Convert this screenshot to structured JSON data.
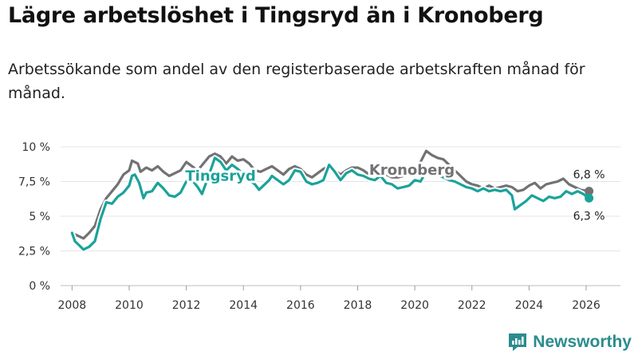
{
  "header": {
    "title": "Lägre arbetslöshet i Tingsryd än i Kronoberg",
    "subtitle": "Arbetssökande som andel av den registerbaserade arbetskraften månad för månad."
  },
  "brand": {
    "name": "Newsworthy",
    "icon": "newsworthy-logo-icon",
    "color": "#2b8c8e"
  },
  "chart_data": {
    "type": "line",
    "title": "Lägre arbetslöshet i Tingsryd än i Kronoberg",
    "subtitle": "Arbetssökande som andel av den registerbaserade arbetskraften månad för månad.",
    "xlabel": "",
    "ylabel": "",
    "xlim": [
      2007.6,
      2027.2
    ],
    "ylim": [
      0,
      10
    ],
    "x_ticks": [
      2008,
      2010,
      2012,
      2014,
      2016,
      2018,
      2020,
      2022,
      2024,
      2026
    ],
    "x_tick_labels": [
      "2008",
      "2010",
      "2012",
      "2014",
      "2016",
      "2018",
      "2020",
      "2022",
      "2024",
      "2026"
    ],
    "y_ticks": [
      0,
      2.5,
      5,
      7.5,
      10
    ],
    "y_tick_labels": [
      "0 %",
      "2,5 %",
      "5 %",
      "7,5 %",
      "10 %"
    ],
    "grid": true,
    "series": [
      {
        "name": "Kronoberg",
        "color": "#727275",
        "label": "Kronoberg",
        "end_label": "6,8 %",
        "points": [
          [
            2008.0,
            3.8
          ],
          [
            2008.2,
            3.6
          ],
          [
            2008.4,
            3.4
          ],
          [
            2008.6,
            3.8
          ],
          [
            2008.8,
            4.3
          ],
          [
            2009.0,
            5.5
          ],
          [
            2009.2,
            6.3
          ],
          [
            2009.4,
            6.8
          ],
          [
            2009.6,
            7.3
          ],
          [
            2009.8,
            8.0
          ],
          [
            2010.0,
            8.3
          ],
          [
            2010.1,
            9.0
          ],
          [
            2010.3,
            8.8
          ],
          [
            2010.4,
            8.2
          ],
          [
            2010.6,
            8.5
          ],
          [
            2010.8,
            8.3
          ],
          [
            2011.0,
            8.6
          ],
          [
            2011.2,
            8.2
          ],
          [
            2011.4,
            7.9
          ],
          [
            2011.6,
            8.1
          ],
          [
            2011.8,
            8.3
          ],
          [
            2012.0,
            8.9
          ],
          [
            2012.2,
            8.6
          ],
          [
            2012.4,
            8.3
          ],
          [
            2012.6,
            8.8
          ],
          [
            2012.8,
            9.3
          ],
          [
            2013.0,
            9.5
          ],
          [
            2013.2,
            9.3
          ],
          [
            2013.4,
            8.8
          ],
          [
            2013.6,
            9.3
          ],
          [
            2013.8,
            9.0
          ],
          [
            2014.0,
            9.1
          ],
          [
            2014.2,
            8.8
          ],
          [
            2014.4,
            8.3
          ],
          [
            2014.6,
            8.2
          ],
          [
            2014.8,
            8.4
          ],
          [
            2015.0,
            8.6
          ],
          [
            2015.2,
            8.3
          ],
          [
            2015.4,
            8.0
          ],
          [
            2015.6,
            8.4
          ],
          [
            2015.8,
            8.6
          ],
          [
            2016.0,
            8.4
          ],
          [
            2016.2,
            8.0
          ],
          [
            2016.4,
            7.8
          ],
          [
            2016.6,
            8.1
          ],
          [
            2016.8,
            8.4
          ],
          [
            2017.0,
            8.6
          ],
          [
            2017.2,
            8.3
          ],
          [
            2017.4,
            8.0
          ],
          [
            2017.6,
            8.3
          ],
          [
            2017.8,
            8.5
          ],
          [
            2018.0,
            8.5
          ],
          [
            2018.2,
            8.3
          ],
          [
            2018.4,
            8.0
          ],
          [
            2018.6,
            8.3
          ],
          [
            2018.8,
            8.1
          ],
          [
            2019.0,
            8.0
          ],
          [
            2019.2,
            7.8
          ],
          [
            2019.4,
            7.8
          ],
          [
            2019.6,
            7.9
          ],
          [
            2019.8,
            8.1
          ],
          [
            2020.0,
            8.3
          ],
          [
            2020.2,
            8.9
          ],
          [
            2020.4,
            9.7
          ],
          [
            2020.6,
            9.4
          ],
          [
            2020.8,
            9.2
          ],
          [
            2021.0,
            9.1
          ],
          [
            2021.2,
            8.7
          ],
          [
            2021.4,
            8.3
          ],
          [
            2021.6,
            7.9
          ],
          [
            2021.8,
            7.5
          ],
          [
            2022.0,
            7.3
          ],
          [
            2022.2,
            7.2
          ],
          [
            2022.4,
            7.0
          ],
          [
            2022.6,
            7.2
          ],
          [
            2022.8,
            7.0
          ],
          [
            2023.0,
            7.1
          ],
          [
            2023.2,
            7.2
          ],
          [
            2023.4,
            7.1
          ],
          [
            2023.6,
            6.8
          ],
          [
            2023.8,
            6.9
          ],
          [
            2024.0,
            7.2
          ],
          [
            2024.2,
            7.4
          ],
          [
            2024.4,
            7.0
          ],
          [
            2024.6,
            7.3
          ],
          [
            2024.8,
            7.4
          ],
          [
            2025.0,
            7.5
          ],
          [
            2025.2,
            7.7
          ],
          [
            2025.4,
            7.3
          ],
          [
            2025.6,
            7.1
          ],
          [
            2025.8,
            6.9
          ],
          [
            2026.1,
            6.8
          ]
        ]
      },
      {
        "name": "Tingsryd",
        "color": "#1aa39a",
        "label": "Tingsryd",
        "end_label": "6,3 %",
        "points": [
          [
            2008.0,
            3.8
          ],
          [
            2008.1,
            3.2
          ],
          [
            2008.25,
            2.9
          ],
          [
            2008.4,
            2.6
          ],
          [
            2008.6,
            2.8
          ],
          [
            2008.8,
            3.2
          ],
          [
            2009.0,
            4.8
          ],
          [
            2009.2,
            6.0
          ],
          [
            2009.4,
            5.9
          ],
          [
            2009.6,
            6.4
          ],
          [
            2009.8,
            6.7
          ],
          [
            2010.0,
            7.2
          ],
          [
            2010.1,
            7.9
          ],
          [
            2010.2,
            8.0
          ],
          [
            2010.35,
            7.4
          ],
          [
            2010.5,
            6.3
          ],
          [
            2010.6,
            6.7
          ],
          [
            2010.8,
            6.8
          ],
          [
            2011.0,
            7.4
          ],
          [
            2011.2,
            7.0
          ],
          [
            2011.4,
            6.5
          ],
          [
            2011.6,
            6.4
          ],
          [
            2011.8,
            6.7
          ],
          [
            2012.0,
            7.5
          ],
          [
            2012.2,
            7.6
          ],
          [
            2012.4,
            7.1
          ],
          [
            2012.55,
            6.6
          ],
          [
            2012.8,
            8.0
          ],
          [
            2013.0,
            9.2
          ],
          [
            2013.2,
            8.9
          ],
          [
            2013.4,
            8.3
          ],
          [
            2013.6,
            8.7
          ],
          [
            2013.8,
            8.4
          ],
          [
            2014.0,
            8.0
          ],
          [
            2014.2,
            7.6
          ],
          [
            2014.4,
            7.3
          ],
          [
            2014.55,
            6.9
          ],
          [
            2014.7,
            7.2
          ],
          [
            2014.9,
            7.6
          ],
          [
            2015.0,
            7.9
          ],
          [
            2015.2,
            7.6
          ],
          [
            2015.4,
            7.3
          ],
          [
            2015.6,
            7.6
          ],
          [
            2015.8,
            8.3
          ],
          [
            2016.0,
            8.2
          ],
          [
            2016.2,
            7.5
          ],
          [
            2016.4,
            7.3
          ],
          [
            2016.6,
            7.4
          ],
          [
            2016.8,
            7.6
          ],
          [
            2017.0,
            8.7
          ],
          [
            2017.2,
            8.2
          ],
          [
            2017.4,
            7.6
          ],
          [
            2017.6,
            8.1
          ],
          [
            2017.8,
            8.3
          ],
          [
            2018.0,
            8.0
          ],
          [
            2018.2,
            7.9
          ],
          [
            2018.4,
            7.7
          ],
          [
            2018.6,
            7.6
          ],
          [
            2018.8,
            7.9
          ],
          [
            2019.0,
            7.4
          ],
          [
            2019.2,
            7.3
          ],
          [
            2019.4,
            7.0
          ],
          [
            2019.6,
            7.1
          ],
          [
            2019.8,
            7.2
          ],
          [
            2020.0,
            7.6
          ],
          [
            2020.2,
            7.5
          ],
          [
            2020.4,
            8.2
          ],
          [
            2020.6,
            8.4
          ],
          [
            2020.8,
            8.0
          ],
          [
            2021.0,
            7.8
          ],
          [
            2021.2,
            7.6
          ],
          [
            2021.4,
            7.5
          ],
          [
            2021.6,
            7.3
          ],
          [
            2021.8,
            7.1
          ],
          [
            2022.0,
            7.0
          ],
          [
            2022.2,
            6.8
          ],
          [
            2022.4,
            7.0
          ],
          [
            2022.6,
            6.8
          ],
          [
            2022.8,
            6.9
          ],
          [
            2023.0,
            6.8
          ],
          [
            2023.2,
            6.9
          ],
          [
            2023.4,
            6.5
          ],
          [
            2023.5,
            5.5
          ],
          [
            2023.7,
            5.8
          ],
          [
            2023.9,
            6.1
          ],
          [
            2024.1,
            6.5
          ],
          [
            2024.3,
            6.3
          ],
          [
            2024.5,
            6.1
          ],
          [
            2024.7,
            6.4
          ],
          [
            2024.9,
            6.3
          ],
          [
            2025.1,
            6.4
          ],
          [
            2025.3,
            6.8
          ],
          [
            2025.5,
            6.6
          ],
          [
            2025.7,
            6.8
          ],
          [
            2025.9,
            6.6
          ],
          [
            2026.1,
            6.3
          ]
        ]
      }
    ]
  }
}
